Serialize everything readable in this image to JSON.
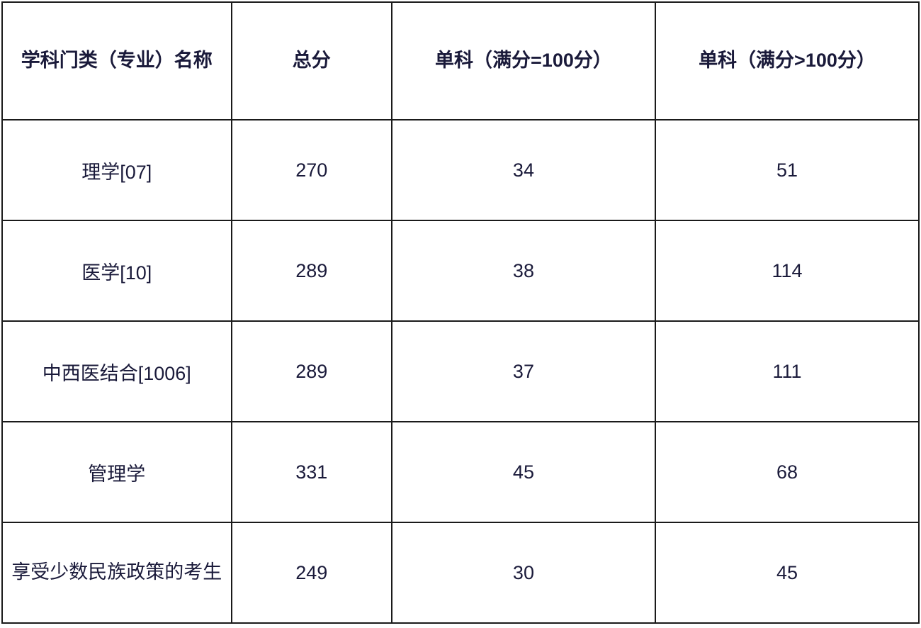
{
  "table": {
    "headers": {
      "col1": "学科门类（专业）名称",
      "col2": "总分",
      "col3": "单科（满分=100分）",
      "col4": "单科（满分>100分）"
    },
    "rows": [
      {
        "name": "理学[07]",
        "total": "270",
        "sub100": "34",
        "subover100": "51"
      },
      {
        "name": "医学[10]",
        "total": "289",
        "sub100": "38",
        "subover100": "114"
      },
      {
        "name": "中西医结合[1006]",
        "total": "289",
        "sub100": "37",
        "subover100": "111"
      },
      {
        "name": "管理学",
        "total": "331",
        "sub100": "45",
        "subover100": "68"
      },
      {
        "name": "享受少数民族政策的考生",
        "total": "249",
        "sub100": "30",
        "subover100": "45"
      }
    ],
    "styling": {
      "border_color": "#1a1a1a",
      "text_color": "#1a1a3a",
      "background_color": "#ffffff",
      "header_font_size": 27,
      "body_font_size": 27,
      "header_font_weight": "bold",
      "body_font_weight": "normal",
      "header_row_height": 166,
      "body_row_height": 142,
      "column_widths_pct": [
        25,
        17.5,
        28.75,
        28.75
      ],
      "border_width": 2,
      "line_height": 1.9
    }
  }
}
